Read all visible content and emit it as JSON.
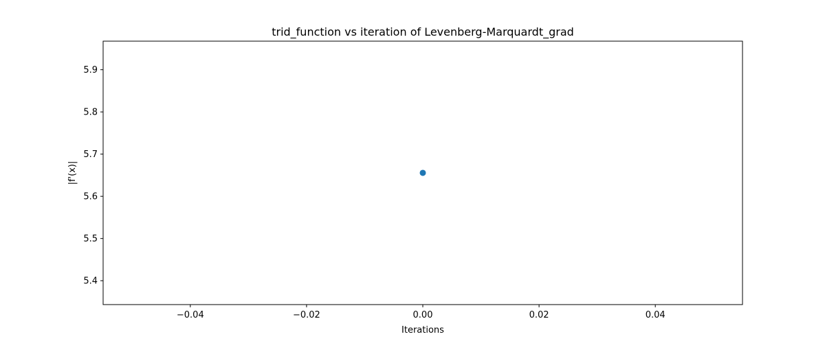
{
  "chart_data": {
    "type": "scatter",
    "title": "trid_function vs iteration of Levenberg-Marquardt_grad",
    "xlabel": "Iterations",
    "ylabel": "|f'(x)|",
    "xlim": [
      -0.055,
      0.055
    ],
    "ylim": [
      5.3434,
      5.9677
    ],
    "xticks": [
      -0.04,
      -0.02,
      0.0,
      0.02,
      0.04
    ],
    "xtick_labels": [
      "−0.04",
      "−0.02",
      "0.00",
      "0.02",
      "0.04"
    ],
    "yticks": [
      5.4,
      5.5,
      5.6,
      5.7,
      5.8,
      5.9
    ],
    "ytick_labels": [
      "5.4",
      "5.5",
      "5.6",
      "5.7",
      "5.8",
      "5.9"
    ],
    "grid": false,
    "legend": "none",
    "series": [
      {
        "color": "#1f77b4",
        "marker": "circle",
        "points": [
          {
            "x": 0,
            "y": 5.6556
          }
        ]
      }
    ]
  }
}
